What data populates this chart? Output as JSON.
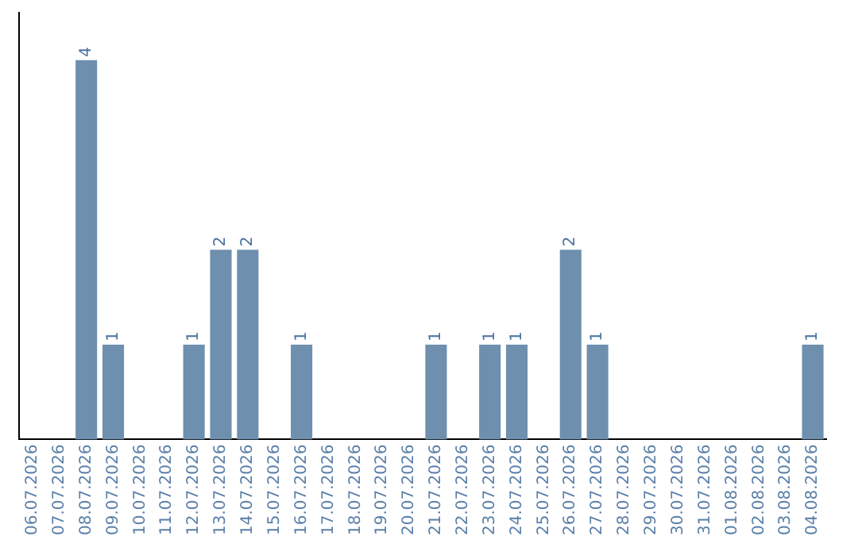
{
  "chart_data": {
    "type": "bar",
    "categories": [
      "06.07.2026",
      "07.07.2026",
      "08.07.2026",
      "09.07.2026",
      "10.07.2026",
      "11.07.2026",
      "12.07.2026",
      "13.07.2026",
      "14.07.2026",
      "15.07.2026",
      "16.07.2026",
      "17.07.2026",
      "18.07.2026",
      "19.07.2026",
      "20.07.2026",
      "21.07.2026",
      "22.07.2026",
      "23.07.2026",
      "24.07.2026",
      "25.07.2026",
      "26.07.2026",
      "27.07.2026",
      "28.07.2026",
      "29.07.2026",
      "30.07.2026",
      "31.07.2026",
      "01.08.2026",
      "02.08.2026",
      "03.08.2026",
      "04.08.2026"
    ],
    "values": [
      0,
      0,
      4,
      1,
      0,
      0,
      1,
      2,
      2,
      0,
      1,
      0,
      0,
      0,
      0,
      1,
      0,
      1,
      1,
      0,
      2,
      1,
      0,
      0,
      0,
      0,
      0,
      0,
      0,
      1
    ],
    "value_labels": [
      null,
      null,
      "4",
      "1",
      null,
      null,
      "1",
      "2",
      "2",
      null,
      "1",
      null,
      null,
      null,
      null,
      "1",
      null,
      "1",
      "1",
      null,
      "2",
      "1",
      null,
      null,
      null,
      null,
      null,
      null,
      null,
      "1"
    ],
    "color": "#6e8fae",
    "grid": false,
    "legend": false,
    "tick_labels": "x"
  }
}
